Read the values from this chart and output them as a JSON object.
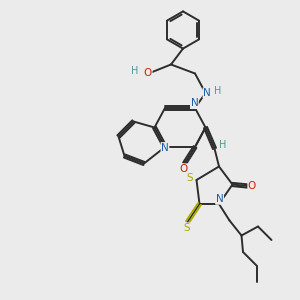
{
  "bg_color": "#ebebeb",
  "bond_color": "#2d2d2d",
  "N_color": "#1a5faa",
  "O_color": "#cc2200",
  "S_color": "#aaaa00",
  "H_color": "#4a9a9a",
  "line_width": 1.4,
  "figsize": [
    3.0,
    3.0
  ],
  "dpi": 100,
  "xlim": [
    0,
    10
  ],
  "ylim": [
    0,
    10
  ]
}
